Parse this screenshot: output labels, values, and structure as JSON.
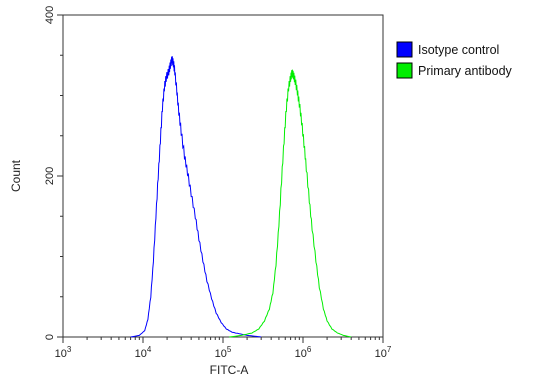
{
  "chart_data": {
    "type": "line",
    "xlabel": "FITC-A",
    "ylabel": "Count",
    "xscale": "log",
    "xlim": [
      1000,
      10000000
    ],
    "ylim": [
      0,
      400
    ],
    "x_ticks": [
      {
        "value": 1000,
        "base": "10",
        "exp": "3"
      },
      {
        "value": 10000,
        "base": "10",
        "exp": "4"
      },
      {
        "value": 100000,
        "base": "10",
        "exp": "5"
      },
      {
        "value": 1000000,
        "base": "10",
        "exp": "6"
      },
      {
        "value": 10000000,
        "base": "10",
        "exp": "7"
      }
    ],
    "y_ticks": [
      0,
      200,
      400
    ],
    "legend_position": "right, outside plot, top",
    "grid": false,
    "series": [
      {
        "name": "Isotype control",
        "color": "#0000ff",
        "points": [
          [
            7000,
            0
          ],
          [
            9000,
            2
          ],
          [
            10500,
            8
          ],
          [
            11500,
            22
          ],
          [
            12500,
            50
          ],
          [
            13500,
            95
          ],
          [
            14500,
            150
          ],
          [
            15500,
            200
          ],
          [
            16500,
            245
          ],
          [
            17500,
            285
          ],
          [
            18500,
            310
          ],
          [
            19500,
            322
          ],
          [
            21000,
            330
          ],
          [
            22000,
            338
          ],
          [
            23000,
            345
          ],
          [
            24000,
            340
          ],
          [
            25000,
            330
          ],
          [
            26500,
            305
          ],
          [
            28000,
            280
          ],
          [
            30000,
            255
          ],
          [
            33000,
            225
          ],
          [
            36000,
            205
          ],
          [
            40000,
            178
          ],
          [
            45000,
            150
          ],
          [
            50000,
            122
          ],
          [
            56000,
            95
          ],
          [
            63000,
            70
          ],
          [
            72000,
            48
          ],
          [
            82000,
            30
          ],
          [
            95000,
            18
          ],
          [
            110000,
            10
          ],
          [
            130000,
            6
          ],
          [
            160000,
            4
          ],
          [
            200000,
            2
          ],
          [
            250000,
            1
          ],
          [
            300000,
            0
          ]
        ]
      },
      {
        "name": "Primary antibody",
        "color": "#00ee00",
        "points": [
          [
            120000,
            0
          ],
          [
            170000,
            2
          ],
          [
            230000,
            5
          ],
          [
            280000,
            10
          ],
          [
            330000,
            20
          ],
          [
            380000,
            35
          ],
          [
            420000,
            55
          ],
          [
            460000,
            90
          ],
          [
            500000,
            140
          ],
          [
            540000,
            195
          ],
          [
            580000,
            245
          ],
          [
            620000,
            285
          ],
          [
            660000,
            310
          ],
          [
            700000,
            322
          ],
          [
            730000,
            328
          ],
          [
            760000,
            325
          ],
          [
            800000,
            318
          ],
          [
            850000,
            305
          ],
          [
            900000,
            290
          ],
          [
            960000,
            268
          ],
          [
            1030000,
            240
          ],
          [
            1100000,
            210
          ],
          [
            1200000,
            170
          ],
          [
            1300000,
            135
          ],
          [
            1450000,
            95
          ],
          [
            1600000,
            62
          ],
          [
            1800000,
            35
          ],
          [
            2000000,
            20
          ],
          [
            2300000,
            10
          ],
          [
            2700000,
            5
          ],
          [
            3200000,
            2
          ],
          [
            4000000,
            0
          ]
        ]
      }
    ]
  }
}
